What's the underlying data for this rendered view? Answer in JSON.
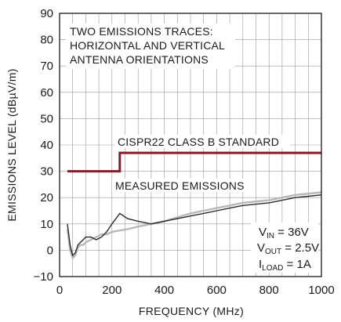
{
  "chart_data": {
    "type": "line",
    "xlabel": "FREQUENCY (MHz)",
    "ylabel": "EMISSIONS LEVEL (dBµV/m)",
    "xlim": [
      0,
      1000
    ],
    "ylim": [
      -10,
      90
    ],
    "xticks": [
      0,
      200,
      400,
      600,
      800,
      1000
    ],
    "yticks": [
      -10,
      0,
      10,
      20,
      30,
      40,
      50,
      60,
      70,
      80,
      90
    ],
    "grid": true,
    "annotations": {
      "title_lines": [
        "TWO EMISSIONS TRACES:",
        "HORIZONTAL AND VERTICAL",
        "ANTENNA ORIENTATIONS"
      ],
      "standard_label": "CISPR22 CLASS B STANDARD",
      "measured_label": "MEASURED EMISSIONS",
      "conditions": [
        {
          "main": "V",
          "sub": "IN",
          "rest": " = 36V"
        },
        {
          "main": "V",
          "sub": "OUT",
          "rest": " = 2.5V"
        },
        {
          "main": "I",
          "sub": "LOAD",
          "rest": " = 1A"
        }
      ]
    },
    "series": [
      {
        "color": "#8b1a2b",
        "x": [
          30,
          230,
          230,
          1000
        ],
        "y": [
          30,
          30,
          37,
          37
        ]
      },
      {
        "color": "#b8b8b8",
        "x": [
          30,
          40,
          50,
          60,
          70,
          80,
          90,
          100,
          120,
          140,
          160,
          180,
          200,
          230,
          260,
          300,
          350,
          400,
          450,
          500,
          550,
          600,
          650,
          700,
          750,
          800,
          850,
          900,
          950,
          1000
        ],
        "y": [
          8,
          0,
          -3,
          -2,
          1,
          2,
          2,
          3,
          4,
          5,
          6,
          6,
          7,
          7.5,
          8,
          9,
          10,
          11,
          12.5,
          14,
          15,
          16,
          17,
          18,
          18.5,
          19,
          20,
          21,
          21.5,
          22
        ]
      },
      {
        "color": "#2a2a2a",
        "x": [
          30,
          40,
          50,
          60,
          70,
          80,
          90,
          100,
          120,
          140,
          160,
          180,
          200,
          230,
          260,
          300,
          350,
          400,
          450,
          500,
          550,
          600,
          650,
          700,
          750,
          800,
          850,
          900,
          950,
          1000
        ],
        "y": [
          10,
          2,
          -2,
          -1,
          2,
          3,
          4,
          5,
          5,
          4,
          5,
          7,
          10,
          14,
          12,
          11,
          10,
          11,
          12,
          13,
          14,
          15,
          16,
          17,
          17.5,
          18,
          19,
          20,
          20.5,
          21
        ]
      }
    ],
    "colors": {
      "standard": "#8b1a2b",
      "vertical_trace": "#b8b8b8",
      "horizontal_trace": "#2a2a2a",
      "grid": "#9a9a9a",
      "frame": "#1a1a1a"
    }
  }
}
